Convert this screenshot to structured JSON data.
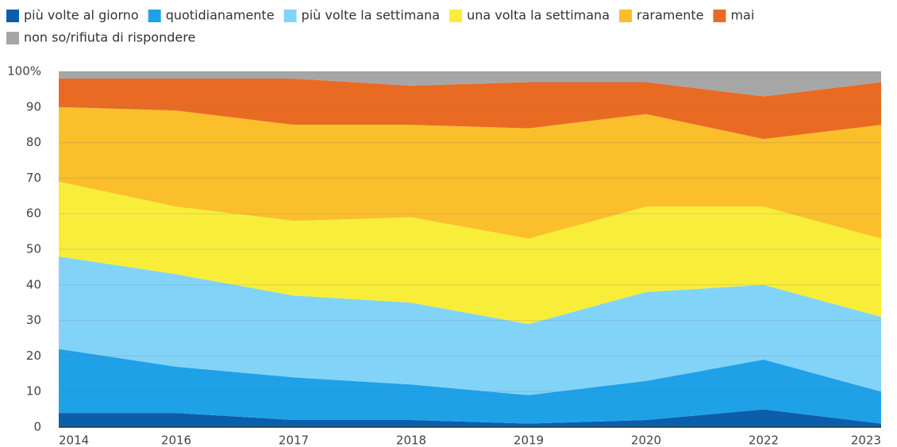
{
  "chart_data": {
    "type": "stacked_area",
    "categories": [
      "2014",
      "2016",
      "2017",
      "2018",
      "2019",
      "2020",
      "2022",
      "2023"
    ],
    "series": [
      {
        "name": "più volte al giorno",
        "color": "#0b5ea9",
        "values": [
          4,
          4,
          2,
          2,
          1,
          2,
          5,
          1
        ]
      },
      {
        "name": "quotidianamente",
        "color": "#1fa1e8",
        "values": [
          18,
          13,
          12,
          10,
          8,
          11,
          14,
          9
        ]
      },
      {
        "name": "più volte la settimana",
        "color": "#82d3f8",
        "values": [
          26,
          26,
          23,
          23,
          20,
          25,
          21,
          21
        ]
      },
      {
        "name": "una volta la settimana",
        "color": "#f8ee3a",
        "values": [
          21,
          19,
          21,
          24,
          24,
          24,
          22,
          22
        ]
      },
      {
        "name": "raramente",
        "color": "#fbbf2b",
        "values": [
          21,
          27,
          27,
          26,
          31,
          26,
          19,
          32
        ]
      },
      {
        "name": "mai",
        "color": "#e96b23",
        "values": [
          8,
          9,
          13,
          11,
          13,
          9,
          12,
          12
        ]
      },
      {
        "name": "non so/rifiuta di rispondere",
        "color": "#a6a6a6",
        "values": [
          2,
          2,
          2,
          4,
          3,
          3,
          7,
          3
        ]
      }
    ],
    "ylim": [
      0,
      100
    ],
    "yticks": [
      0,
      10,
      20,
      30,
      40,
      50,
      60,
      70,
      80,
      90,
      {
        "value": 100,
        "label": "100%"
      }
    ],
    "grid": true
  }
}
